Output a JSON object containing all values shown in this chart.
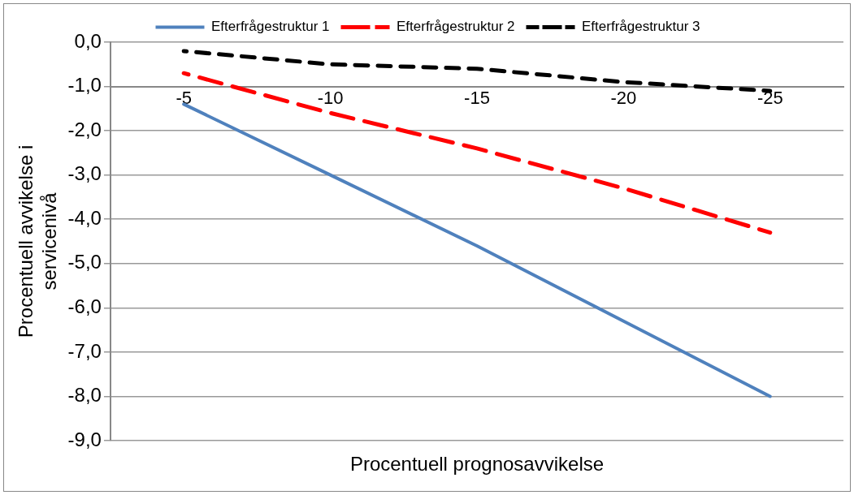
{
  "chart_data": {
    "type": "line",
    "xlabel": "Procentuell prognosavvikelse",
    "ylabel": "Procentuell avvikelse i servicenivå",
    "categories": [
      "-5",
      "-10",
      "-15",
      "-20",
      "-25"
    ],
    "series": [
      {
        "name": "Efterfrågestruktur 1",
        "color": "#4f81bd",
        "line_style": "solid",
        "values": [
          -1.4,
          -3.0,
          -4.6,
          -6.3,
          -8.0
        ]
      },
      {
        "name": "Efterfrågestruktur 2",
        "color": "#ff0000",
        "line_style": "dashed",
        "values": [
          -0.7,
          -1.6,
          -2.4,
          -3.3,
          -4.3
        ]
      },
      {
        "name": "Efterfrågestruktur 3",
        "color": "#000000",
        "line_style": "dotted",
        "values": [
          -0.2,
          -0.5,
          -0.6,
          -0.9,
          -1.1
        ]
      }
    ],
    "ylim": [
      -9,
      0
    ],
    "yticks": [
      {
        "value": 0,
        "label": "0,0"
      },
      {
        "value": -1,
        "label": "-1,0"
      },
      {
        "value": -2,
        "label": "-2,0"
      },
      {
        "value": -3,
        "label": "-3,0"
      },
      {
        "value": -4,
        "label": "-4,0"
      },
      {
        "value": -5,
        "label": "-5,0"
      },
      {
        "value": -6,
        "label": "-6,0"
      },
      {
        "value": -7,
        "label": "-7,0"
      },
      {
        "value": -8,
        "label": "-8,0"
      },
      {
        "value": -9,
        "label": "-9,0"
      }
    ],
    "grid": "y",
    "legend": "top",
    "marker": "none"
  }
}
